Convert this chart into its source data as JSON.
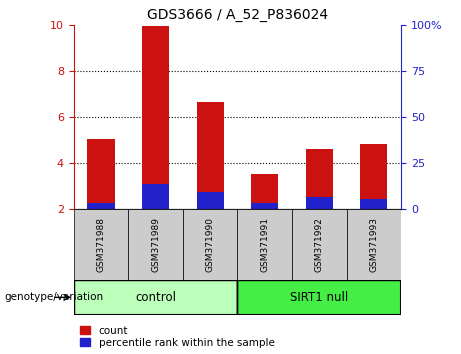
{
  "title": "GDS3666 / A_52_P836024",
  "samples": [
    "GSM371988",
    "GSM371989",
    "GSM371990",
    "GSM371991",
    "GSM371992",
    "GSM371993"
  ],
  "count_values": [
    5.05,
    9.95,
    6.65,
    3.5,
    4.6,
    4.8
  ],
  "percentile_values": [
    2.25,
    3.1,
    2.75,
    2.25,
    2.5,
    2.45
  ],
  "bar_bottom": 2.0,
  "ylim_left": [
    2,
    10
  ],
  "ylim_right": [
    0,
    100
  ],
  "yticks_left": [
    2,
    4,
    6,
    8,
    10
  ],
  "yticks_right": [
    0,
    25,
    50,
    75,
    100
  ],
  "ytick_labels_right": [
    "0",
    "25",
    "50",
    "75",
    "100%"
  ],
  "groups": [
    {
      "label": "control",
      "indices": [
        0,
        1,
        2
      ],
      "color": "#bbffbb"
    },
    {
      "label": "SIRT1 null",
      "indices": [
        3,
        4,
        5
      ],
      "color": "#44ee44"
    }
  ],
  "bar_color_red": "#cc1111",
  "bar_color_blue": "#2222cc",
  "left_axis_color": "#cc1111",
  "right_axis_color": "#2222cc",
  "bg_plot": "#ffffff",
  "bg_xtick": "#cccccc",
  "legend_count_label": "count",
  "legend_pct_label": "percentile rank within the sample",
  "genotype_label": "genotype/variation"
}
